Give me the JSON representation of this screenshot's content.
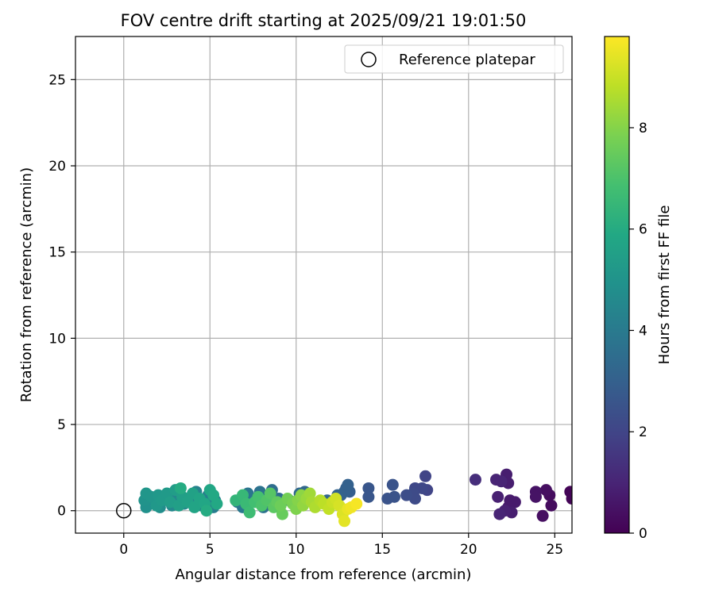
{
  "chart_data": {
    "type": "scatter",
    "title": "FOV centre drift starting at 2025/09/21 19:01:50",
    "xlabel": "Angular distance from reference (arcmin)",
    "ylabel": "Rotation from reference (arcmin)",
    "xlim": [
      -2.8,
      26.0
    ],
    "ylim": [
      -1.3,
      27.5
    ],
    "xticks": [
      0,
      5,
      10,
      15,
      20,
      25
    ],
    "yticks": [
      0,
      5,
      10,
      15,
      20,
      25
    ],
    "grid": true,
    "legend": {
      "position": "top-right",
      "entries": [
        "Reference platepar"
      ]
    },
    "reference_point": {
      "x": 0,
      "y": 0,
      "label": "Reference platepar"
    },
    "colorbar": {
      "label": "Hours from first FF file",
      "range": [
        0,
        9.8
      ],
      "ticks": [
        0,
        2,
        4,
        6,
        8
      ],
      "colormap": "viridis"
    },
    "series": [
      {
        "name": "FOV drift",
        "points": [
          {
            "x": 25.9,
            "y": 1.1,
            "t": 0.1
          },
          {
            "x": 26.0,
            "y": 0.7,
            "t": 0.1
          },
          {
            "x": 24.7,
            "y": 0.9,
            "t": 0.3
          },
          {
            "x": 24.8,
            "y": 0.3,
            "t": 0.3
          },
          {
            "x": 24.5,
            "y": 1.2,
            "t": 0.4
          },
          {
            "x": 24.3,
            "y": -0.3,
            "t": 0.4
          },
          {
            "x": 23.9,
            "y": 1.1,
            "t": 0.5
          },
          {
            "x": 23.9,
            "y": 0.8,
            "t": 0.5
          },
          {
            "x": 22.7,
            "y": 0.5,
            "t": 0.7
          },
          {
            "x": 22.4,
            "y": 0.6,
            "t": 0.7
          },
          {
            "x": 22.3,
            "y": 0.2,
            "t": 0.7
          },
          {
            "x": 22.2,
            "y": 2.1,
            "t": 0.8
          },
          {
            "x": 22.3,
            "y": 1.6,
            "t": 0.8
          },
          {
            "x": 22.5,
            "y": -0.1,
            "t": 0.8
          },
          {
            "x": 22.1,
            "y": 0.0,
            "t": 0.9
          },
          {
            "x": 21.7,
            "y": 0.8,
            "t": 0.9
          },
          {
            "x": 21.8,
            "y": -0.2,
            "t": 1.0
          },
          {
            "x": 21.6,
            "y": 1.8,
            "t": 1.0
          },
          {
            "x": 21.9,
            "y": 1.7,
            "t": 1.0
          },
          {
            "x": 20.4,
            "y": 1.8,
            "t": 1.3
          },
          {
            "x": 17.5,
            "y": 2.0,
            "t": 2.0
          },
          {
            "x": 17.6,
            "y": 1.2,
            "t": 2.0
          },
          {
            "x": 17.3,
            "y": 1.3,
            "t": 2.1
          },
          {
            "x": 16.9,
            "y": 1.3,
            "t": 2.1
          },
          {
            "x": 16.8,
            "y": 1.0,
            "t": 2.2
          },
          {
            "x": 16.9,
            "y": 0.7,
            "t": 2.2
          },
          {
            "x": 16.4,
            "y": 0.9,
            "t": 2.3
          },
          {
            "x": 15.6,
            "y": 1.5,
            "t": 2.5
          },
          {
            "x": 15.7,
            "y": 0.8,
            "t": 2.5
          },
          {
            "x": 15.3,
            "y": 0.7,
            "t": 2.5
          },
          {
            "x": 14.2,
            "y": 1.3,
            "t": 2.6
          },
          {
            "x": 14.2,
            "y": 0.8,
            "t": 2.6
          },
          {
            "x": 13.1,
            "y": 1.1,
            "t": 2.9
          },
          {
            "x": 12.9,
            "y": 1.3,
            "t": 2.9
          },
          {
            "x": 12.8,
            "y": 1.1,
            "t": 3.0
          },
          {
            "x": 12.6,
            "y": 0.9,
            "t": 3.0
          },
          {
            "x": 13.0,
            "y": 1.5,
            "t": 3.0
          },
          {
            "x": 12.4,
            "y": 0.9,
            "t": 3.1
          },
          {
            "x": 11.8,
            "y": 0.6,
            "t": 3.2
          },
          {
            "x": 11.3,
            "y": 0.5,
            "t": 3.2
          },
          {
            "x": 10.5,
            "y": 1.1,
            "t": 3.3
          },
          {
            "x": 10.2,
            "y": 1.0,
            "t": 3.3
          },
          {
            "x": 9.6,
            "y": 0.6,
            "t": 3.4
          },
          {
            "x": 9.0,
            "y": 0.7,
            "t": 3.5
          },
          {
            "x": 8.6,
            "y": 1.2,
            "t": 3.5
          },
          {
            "x": 8.2,
            "y": 0.8,
            "t": 3.6
          },
          {
            "x": 8.1,
            "y": 0.2,
            "t": 3.7
          },
          {
            "x": 7.9,
            "y": 1.1,
            "t": 3.7
          },
          {
            "x": 7.5,
            "y": 0.6,
            "t": 3.8
          },
          {
            "x": 7.2,
            "y": 1.0,
            "t": 3.8
          },
          {
            "x": 6.9,
            "y": 0.2,
            "t": 3.9
          },
          {
            "x": 6.6,
            "y": 0.5,
            "t": 3.9
          },
          {
            "x": 5.3,
            "y": 0.6,
            "t": 4.1
          },
          {
            "x": 5.2,
            "y": 0.2,
            "t": 4.1
          },
          {
            "x": 4.9,
            "y": 0.9,
            "t": 4.2
          },
          {
            "x": 4.5,
            "y": 0.3,
            "t": 4.2
          },
          {
            "x": 4.2,
            "y": 1.1,
            "t": 4.3
          },
          {
            "x": 3.9,
            "y": 0.7,
            "t": 4.4
          },
          {
            "x": 3.5,
            "y": 0.4,
            "t": 4.5
          },
          {
            "x": 3.1,
            "y": 0.9,
            "t": 4.5
          },
          {
            "x": 2.8,
            "y": 0.3,
            "t": 4.6
          },
          {
            "x": 2.4,
            "y": 0.7,
            "t": 4.7
          },
          {
            "x": 2.1,
            "y": 0.2,
            "t": 4.8
          },
          {
            "x": 1.8,
            "y": 0.6,
            "t": 4.8
          },
          {
            "x": 1.5,
            "y": 0.4,
            "t": 4.9
          },
          {
            "x": 1.3,
            "y": 0.2,
            "t": 4.9
          },
          {
            "x": 1.2,
            "y": 0.6,
            "t": 5.0
          },
          {
            "x": 1.4,
            "y": 0.9,
            "t": 5.0
          },
          {
            "x": 1.3,
            "y": 1.0,
            "t": 5.1
          },
          {
            "x": 1.6,
            "y": 0.8,
            "t": 5.1
          },
          {
            "x": 1.9,
            "y": 0.3,
            "t": 5.2
          },
          {
            "x": 2.0,
            "y": 0.9,
            "t": 5.2
          },
          {
            "x": 2.2,
            "y": 0.6,
            "t": 5.3
          },
          {
            "x": 2.5,
            "y": 1.0,
            "t": 5.3
          },
          {
            "x": 2.7,
            "y": 0.5,
            "t": 5.4
          },
          {
            "x": 3.0,
            "y": 1.2,
            "t": 5.4
          },
          {
            "x": 3.2,
            "y": 0.3,
            "t": 5.5
          },
          {
            "x": 3.4,
            "y": 0.8,
            "t": 5.5
          },
          {
            "x": 3.7,
            "y": 0.5,
            "t": 5.6
          },
          {
            "x": 4.0,
            "y": 1.0,
            "t": 5.6
          },
          {
            "x": 4.1,
            "y": 0.2,
            "t": 5.7
          },
          {
            "x": 4.4,
            "y": 0.7,
            "t": 5.7
          },
          {
            "x": 4.7,
            "y": 0.4,
            "t": 5.8
          },
          {
            "x": 5.0,
            "y": 1.2,
            "t": 5.8
          },
          {
            "x": 5.2,
            "y": 0.9,
            "t": 5.9
          },
          {
            "x": 5.4,
            "y": 0.4,
            "t": 5.9
          },
          {
            "x": 4.8,
            "y": 0.0,
            "t": 6.0
          },
          {
            "x": 3.3,
            "y": 1.3,
            "t": 6.0
          },
          {
            "x": 6.5,
            "y": 0.6,
            "t": 6.4
          },
          {
            "x": 6.9,
            "y": 0.9,
            "t": 6.5
          },
          {
            "x": 7.1,
            "y": 0.4,
            "t": 6.6
          },
          {
            "x": 7.3,
            "y": -0.1,
            "t": 6.7
          },
          {
            "x": 7.6,
            "y": 0.5,
            "t": 6.8
          },
          {
            "x": 7.8,
            "y": 0.8,
            "t": 6.9
          },
          {
            "x": 8.0,
            "y": 0.3,
            "t": 7.0
          },
          {
            "x": 8.3,
            "y": 0.6,
            "t": 7.1
          },
          {
            "x": 8.5,
            "y": 1.0,
            "t": 7.2
          },
          {
            "x": 8.7,
            "y": 0.2,
            "t": 7.3
          },
          {
            "x": 8.9,
            "y": 0.5,
            "t": 7.4
          },
          {
            "x": 9.2,
            "y": -0.2,
            "t": 7.5
          },
          {
            "x": 9.1,
            "y": 0.3,
            "t": 7.6
          },
          {
            "x": 9.5,
            "y": 0.7,
            "t": 7.7
          },
          {
            "x": 9.8,
            "y": 0.4,
            "t": 7.8
          },
          {
            "x": 10.0,
            "y": 0.1,
            "t": 7.9
          },
          {
            "x": 10.1,
            "y": 0.6,
            "t": 8.0
          },
          {
            "x": 10.3,
            "y": 0.9,
            "t": 8.1
          },
          {
            "x": 10.4,
            "y": 0.3,
            "t": 8.2
          },
          {
            "x": 10.6,
            "y": 0.7,
            "t": 8.3
          },
          {
            "x": 10.8,
            "y": 1.0,
            "t": 8.4
          },
          {
            "x": 10.9,
            "y": 0.5,
            "t": 8.5
          },
          {
            "x": 11.1,
            "y": 0.2,
            "t": 8.6
          },
          {
            "x": 11.4,
            "y": 0.6,
            "t": 8.7
          },
          {
            "x": 11.6,
            "y": 0.4,
            "t": 8.8
          },
          {
            "x": 11.9,
            "y": 0.1,
            "t": 8.9
          },
          {
            "x": 12.1,
            "y": 0.5,
            "t": 9.0
          },
          {
            "x": 12.3,
            "y": 0.7,
            "t": 9.1
          },
          {
            "x": 12.5,
            "y": 0.3,
            "t": 9.2
          },
          {
            "x": 12.7,
            "y": -0.2,
            "t": 9.3
          },
          {
            "x": 12.8,
            "y": -0.6,
            "t": 9.4
          },
          {
            "x": 13.0,
            "y": 0.1,
            "t": 9.5
          },
          {
            "x": 13.2,
            "y": 0.2,
            "t": 9.6
          },
          {
            "x": 13.5,
            "y": 0.4,
            "t": 9.7
          }
        ]
      }
    ]
  }
}
